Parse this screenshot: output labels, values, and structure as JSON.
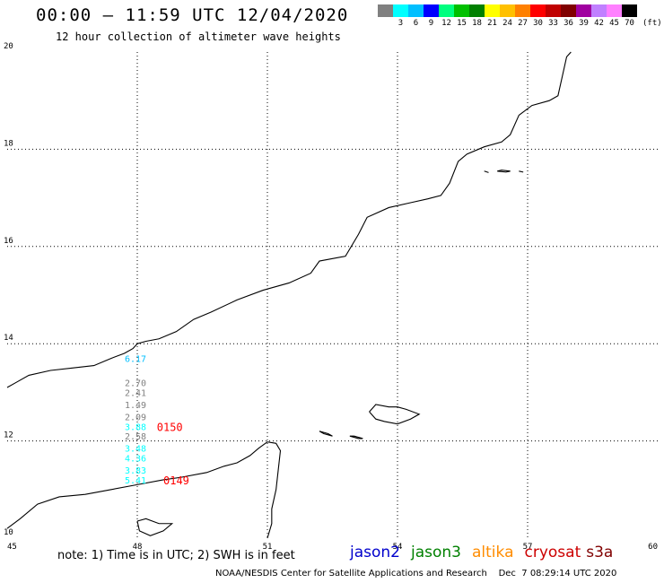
{
  "header": {
    "title": "00:00 – 11:59 UTC 12/04/2020",
    "subtitle": "12 hour collection of altimeter wave heights"
  },
  "scale": {
    "colors": [
      "#808080",
      "#00ffff",
      "#00bfff",
      "#0000ff",
      "#00ff7f",
      "#00c000",
      "#008000",
      "#ffff00",
      "#ffc000",
      "#ff8000",
      "#ff0000",
      "#c00000",
      "#800000",
      "#a000a0",
      "#c080ff",
      "#ff80ff",
      "#000000"
    ],
    "labels": [
      "3",
      "6",
      "9",
      "12",
      "15",
      "18",
      "21",
      "24",
      "27",
      "30",
      "33",
      "36",
      "39",
      "42",
      "45",
      "70"
    ],
    "unit": "(ft)"
  },
  "chart_data": {
    "type": "scatter",
    "title": "00:00 – 11:59 UTC 12/04/2020",
    "xlabel": "",
    "ylabel": "",
    "xlim": [
      45,
      60
    ],
    "ylim": [
      10,
      20
    ],
    "x_ticks": [
      "45",
      "48",
      "51",
      "54",
      "57",
      "60"
    ],
    "y_ticks": [
      "10",
      "12",
      "14",
      "16",
      "18",
      "20"
    ],
    "grid": true,
    "wave_heights": [
      {
        "lon": 48.0,
        "lat": 13.7,
        "value": "6.17",
        "color": "#00bfff"
      },
      {
        "lon": 48.0,
        "lat": 13.2,
        "value": "2.70",
        "color": "#808080"
      },
      {
        "lon": 48.0,
        "lat": 13.0,
        "value": "2.41",
        "color": "#808080"
      },
      {
        "lon": 48.0,
        "lat": 12.75,
        "value": "1.49",
        "color": "#808080"
      },
      {
        "lon": 48.0,
        "lat": 12.5,
        "value": "2.09",
        "color": "#808080"
      },
      {
        "lon": 48.0,
        "lat": 12.3,
        "value": "3.88",
        "color": "#00ffff"
      },
      {
        "lon": 48.0,
        "lat": 12.1,
        "value": "2.58",
        "color": "#808080"
      },
      {
        "lon": 48.0,
        "lat": 11.85,
        "value": "3.48",
        "color": "#00ffff"
      },
      {
        "lon": 48.0,
        "lat": 11.65,
        "value": "4.36",
        "color": "#00ffff"
      },
      {
        "lon": 48.0,
        "lat": 11.4,
        "value": "3.83",
        "color": "#00ffff"
      },
      {
        "lon": 48.0,
        "lat": 11.2,
        "value": "5.41",
        "color": "#00ffff"
      }
    ],
    "time_labels": [
      {
        "lon": 48.45,
        "lat": 12.3,
        "value": "0150",
        "color": "#ff0000"
      },
      {
        "lon": 48.6,
        "lat": 11.2,
        "value": "0149",
        "color": "#ff0000"
      }
    ],
    "coastlines": [
      [
        [
          45,
          13.1
        ],
        [
          45.2,
          13.2
        ],
        [
          45.5,
          13.35
        ],
        [
          46.0,
          13.45
        ],
        [
          46.5,
          13.5
        ],
        [
          47.0,
          13.55
        ],
        [
          47.4,
          13.7
        ],
        [
          47.7,
          13.8
        ],
        [
          47.9,
          13.9
        ],
        [
          48.0,
          14.0
        ],
        [
          48.2,
          14.05
        ],
        [
          48.5,
          14.1
        ],
        [
          48.9,
          14.25
        ],
        [
          49.3,
          14.5
        ],
        [
          49.7,
          14.65
        ],
        [
          50.3,
          14.9
        ],
        [
          50.9,
          15.1
        ],
        [
          51.5,
          15.25
        ],
        [
          52.0,
          15.45
        ],
        [
          52.2,
          15.7
        ],
        [
          52.8,
          15.8
        ],
        [
          53.1,
          16.25
        ],
        [
          53.3,
          16.6
        ],
        [
          53.8,
          16.8
        ],
        [
          54.3,
          16.9
        ],
        [
          54.7,
          16.98
        ],
        [
          55.0,
          17.05
        ],
        [
          55.2,
          17.3
        ],
        [
          55.4,
          17.75
        ],
        [
          55.6,
          17.9
        ],
        [
          56.0,
          18.05
        ],
        [
          56.4,
          18.15
        ],
        [
          56.6,
          18.3
        ],
        [
          56.8,
          18.7
        ],
        [
          57.1,
          18.9
        ],
        [
          57.5,
          19.0
        ],
        [
          57.7,
          19.1
        ],
        [
          57.8,
          19.5
        ],
        [
          57.9,
          19.9
        ],
        [
          58.0,
          20.0
        ]
      ],
      [
        [
          45,
          10.2
        ],
        [
          45.3,
          10.4
        ],
        [
          45.7,
          10.7
        ],
        [
          46.2,
          10.85
        ],
        [
          46.8,
          10.9
        ],
        [
          47.4,
          11.0
        ],
        [
          48.0,
          11.1
        ],
        [
          48.6,
          11.2
        ],
        [
          49.0,
          11.25
        ],
        [
          49.6,
          11.35
        ],
        [
          50.0,
          11.48
        ],
        [
          50.3,
          11.55
        ],
        [
          50.6,
          11.7
        ],
        [
          50.8,
          11.85
        ],
        [
          51.0,
          11.98
        ],
        [
          51.2,
          11.95
        ],
        [
          51.3,
          11.8
        ],
        [
          51.25,
          11.4
        ],
        [
          51.2,
          11.0
        ],
        [
          51.1,
          10.6
        ],
        [
          51.1,
          10.3
        ],
        [
          51.0,
          10.0
        ]
      ]
    ],
    "islands": [
      [
        [
          53.35,
          12.6
        ],
        [
          53.5,
          12.75
        ],
        [
          53.8,
          12.7
        ],
        [
          54.0,
          12.7
        ],
        [
          54.2,
          12.65
        ],
        [
          54.5,
          12.55
        ],
        [
          54.3,
          12.45
        ],
        [
          54.0,
          12.35
        ],
        [
          53.7,
          12.4
        ],
        [
          53.5,
          12.45
        ],
        [
          53.35,
          12.6
        ]
      ],
      [
        [
          52.2,
          12.2
        ],
        [
          52.4,
          12.15
        ],
        [
          52.5,
          12.1
        ],
        [
          52.3,
          12.15
        ],
        [
          52.2,
          12.2
        ]
      ],
      [
        [
          52.9,
          12.1
        ],
        [
          53.1,
          12.05
        ],
        [
          53.2,
          12.05
        ],
        [
          53.0,
          12.1
        ],
        [
          52.9,
          12.1
        ]
      ],
      [
        [
          56.0,
          17.55
        ],
        [
          56.1,
          17.52
        ]
      ],
      [
        [
          56.3,
          17.55
        ],
        [
          56.5,
          17.53
        ],
        [
          56.6,
          17.55
        ],
        [
          56.4,
          17.57
        ],
        [
          56.3,
          17.55
        ]
      ],
      [
        [
          56.8,
          17.55
        ],
        [
          56.9,
          17.53
        ]
      ],
      [
        [
          48.0,
          10.35
        ],
        [
          48.2,
          10.4
        ],
        [
          48.5,
          10.3
        ],
        [
          48.8,
          10.3
        ],
        [
          48.6,
          10.15
        ],
        [
          48.3,
          10.05
        ],
        [
          48.05,
          10.15
        ],
        [
          48.0,
          10.35
        ]
      ]
    ]
  },
  "note": "note: 1) Time is in UTC; 2) SWH is in feet",
  "satellites": [
    {
      "name": "jason2",
      "color": "#0000cc"
    },
    {
      "name": "jason3",
      "color": "#008000"
    },
    {
      "name": "altika",
      "color": "#ff8c00"
    },
    {
      "name": "cryosat",
      "color": "#cc0000"
    },
    {
      "name": "s3a",
      "color": "#800000"
    }
  ],
  "footer": "NOAA/NESDIS Center for Satellite Applications and Research    Dec  7 08:29:14 UTC 2020"
}
